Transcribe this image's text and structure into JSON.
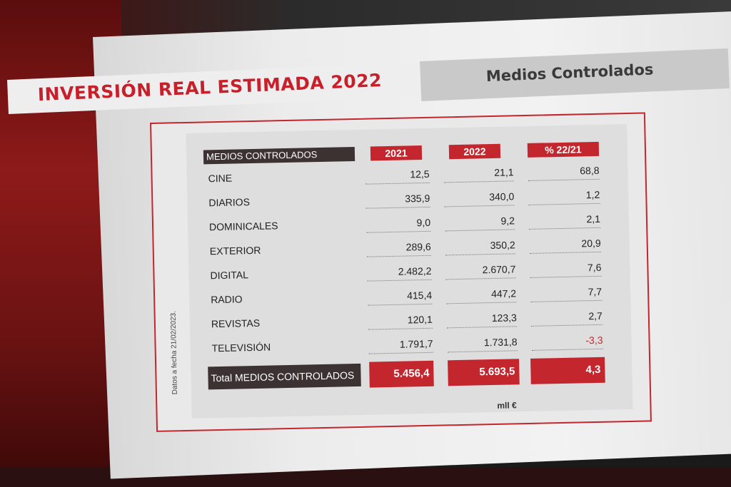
{
  "slide": {
    "title": "INVERSIÓN REAL ESTIMADA 2022",
    "subtitle": "Medios Controlados",
    "side_note": "Datos a fecha 21/02/2023.",
    "unit": "mll €"
  },
  "table": {
    "header": {
      "label": "MEDIOS CONTROLADOS",
      "col1": "2021",
      "col2": "2022",
      "col3": "% 22/21"
    },
    "rows": [
      {
        "label": "CINE",
        "v2021": "12,5",
        "v2022": "21,1",
        "pct": "68,8"
      },
      {
        "label": "DIARIOS",
        "v2021": "335,9",
        "v2022": "340,0",
        "pct": "1,2"
      },
      {
        "label": "DOMINICALES",
        "v2021": "9,0",
        "v2022": "9,2",
        "pct": "2,1"
      },
      {
        "label": "EXTERIOR",
        "v2021": "289,6",
        "v2022": "350,2",
        "pct": "20,9"
      },
      {
        "label": "DIGITAL",
        "v2021": "2.482,2",
        "v2022": "2.670,7",
        "pct": "7,6"
      },
      {
        "label": "RADIO",
        "v2021": "415,4",
        "v2022": "447,2",
        "pct": "7,7"
      },
      {
        "label": "REVISTAS",
        "v2021": "120,1",
        "v2022": "123,3",
        "pct": "2,7"
      },
      {
        "label": "TELEVISIÓN",
        "v2021": "1.791,7",
        "v2022": "1.731,8",
        "pct": "-3,3"
      }
    ],
    "total": {
      "label": "Total MEDIOS CONTROLADOS",
      "v2021": "5.456,4",
      "v2022": "5.693,5",
      "pct": "4,3"
    }
  },
  "colors": {
    "accent_red": "#c4262e",
    "dark_label": "#3d3232",
    "slide_bg": "#eeeeee"
  }
}
